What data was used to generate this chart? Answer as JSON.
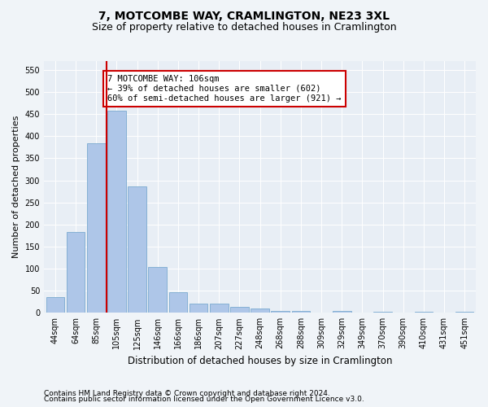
{
  "title": "7, MOTCOMBE WAY, CRAMLINGTON, NE23 3XL",
  "subtitle": "Size of property relative to detached houses in Cramlington",
  "xlabel": "Distribution of detached houses by size in Cramlington",
  "ylabel": "Number of detached properties",
  "categories": [
    "44sqm",
    "64sqm",
    "85sqm",
    "105sqm",
    "125sqm",
    "146sqm",
    "166sqm",
    "186sqm",
    "207sqm",
    "227sqm",
    "248sqm",
    "268sqm",
    "288sqm",
    "309sqm",
    "329sqm",
    "349sqm",
    "370sqm",
    "390sqm",
    "410sqm",
    "431sqm",
    "451sqm"
  ],
  "values": [
    35,
    183,
    383,
    457,
    287,
    103,
    47,
    20,
    20,
    14,
    9,
    5,
    4,
    0,
    5,
    0,
    3,
    0,
    3,
    0,
    3
  ],
  "bar_color": "#aec6e8",
  "bar_edge_color": "#7aaad0",
  "red_line_index": 3,
  "red_line_color": "#cc0000",
  "annotation_text": "7 MOTCOMBE WAY: 106sqm\n← 39% of detached houses are smaller (602)\n60% of semi-detached houses are larger (921) →",
  "annotation_box_color": "#ffffff",
  "annotation_box_edge": "#cc0000",
  "ylim": [
    0,
    570
  ],
  "yticks": [
    0,
    50,
    100,
    150,
    200,
    250,
    300,
    350,
    400,
    450,
    500,
    550
  ],
  "background_color": "#e8eef5",
  "fig_background_color": "#f0f4f8",
  "footer_line1": "Contains HM Land Registry data © Crown copyright and database right 2024.",
  "footer_line2": "Contains public sector information licensed under the Open Government Licence v3.0.",
  "title_fontsize": 10,
  "subtitle_fontsize": 9,
  "tick_fontsize": 7,
  "ylabel_fontsize": 8,
  "xlabel_fontsize": 8.5,
  "annotation_fontsize": 7.5,
  "footer_fontsize": 6.5
}
